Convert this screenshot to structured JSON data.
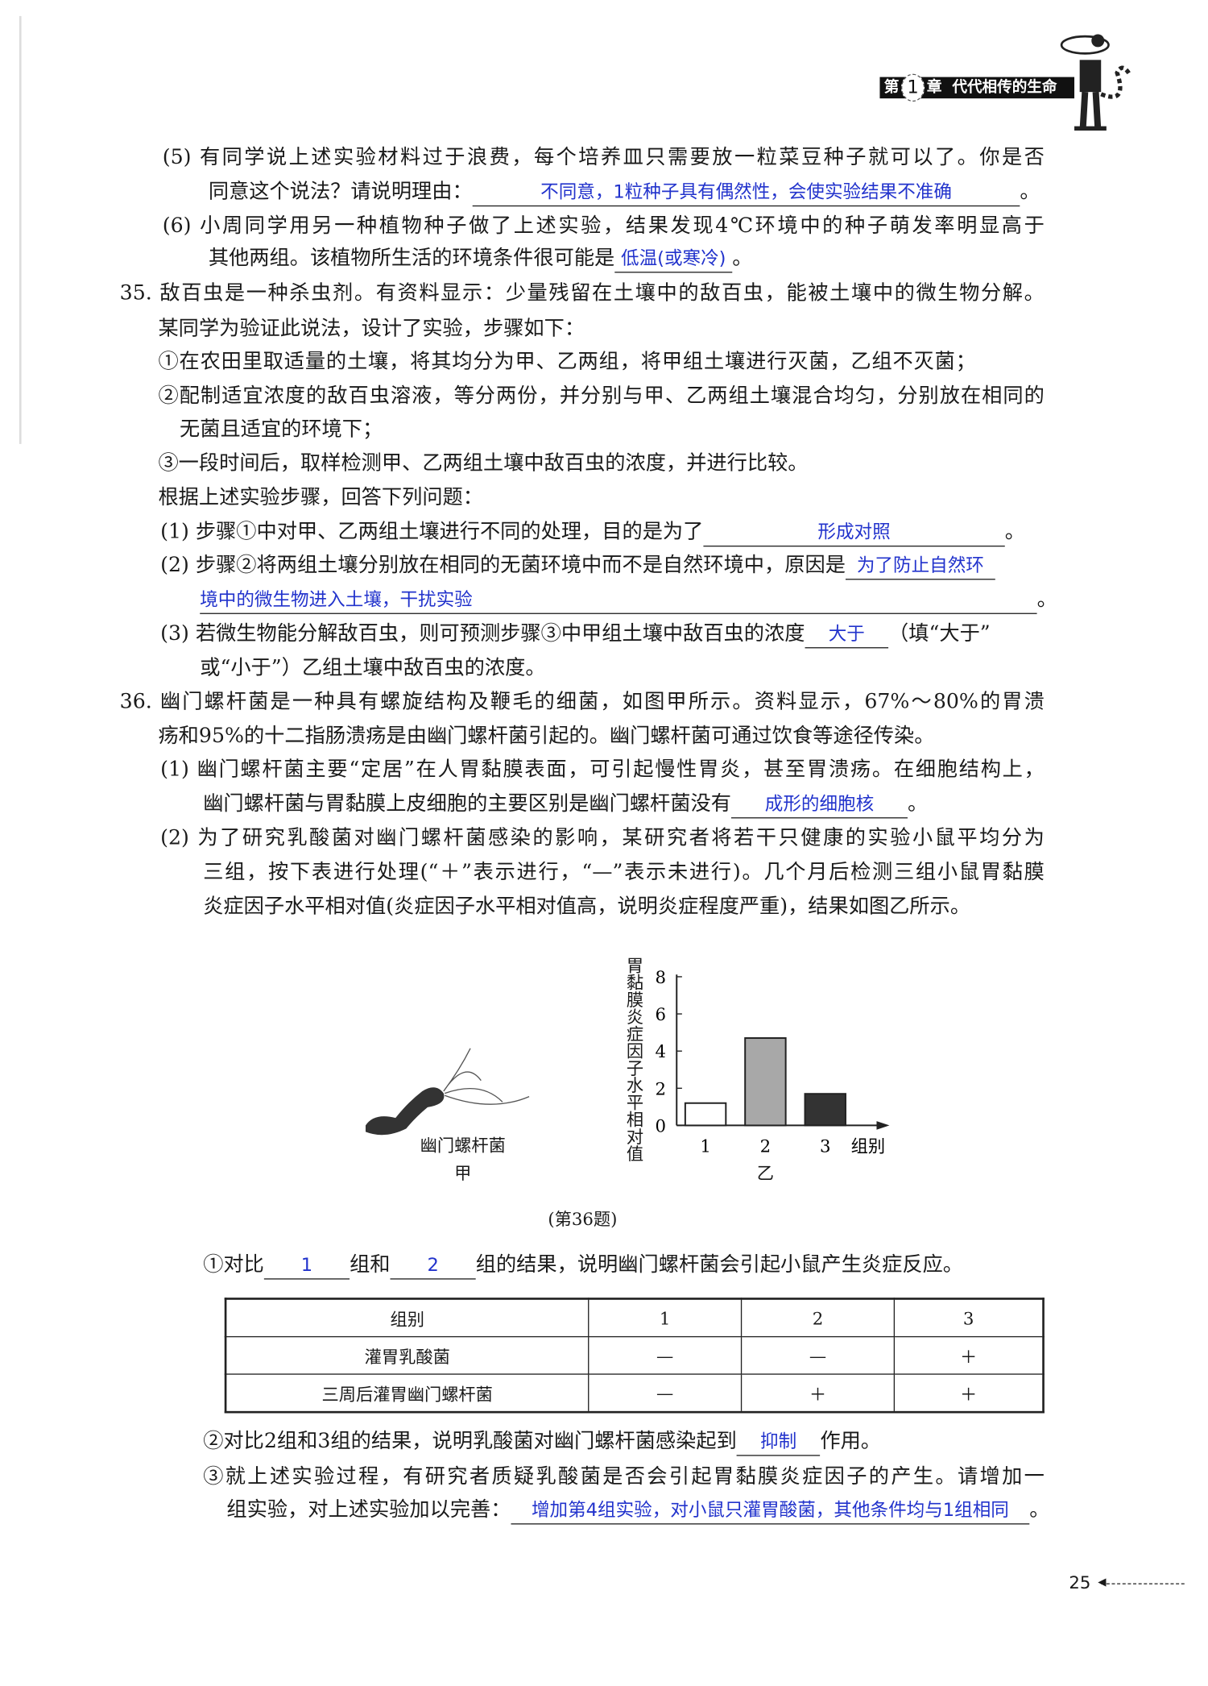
{
  "header": {
    "chapter_prefix": "第",
    "chapter_number": "1",
    "chapter_suffix": "章",
    "chapter_title": "代代相传的生命"
  },
  "q34": {
    "p5_line1": "(5) 有同学说上述实验材料过于浪费，每个培养皿只需要放一粒菜豆种子就可以了。你是否",
    "p5_line2": "同意这个说法？请说明理由：",
    "p5_answer": "不同意，1粒种子具有偶然性，会使实验结果不准确",
    "p6_line1": "(6) 小周同学用另一种植物种子做了上述实验，结果发现4℃环境中的种子萌发率明显高于",
    "p6_line2": "其他两组。该植物所生活的环境条件很可能是",
    "p6_answer": "低温(或寒冷)"
  },
  "q35": {
    "stem1": "35. 敌百虫是一种杀虫剂。有资料显示：少量残留在土壤中的敌百虫，能被土壤中的微生物分解。",
    "stem2": "某同学为验证此说法，设计了实验，步骤如下：",
    "step1": "①在农田里取适量的土壤，将其均分为甲、乙两组，将甲组土壤进行灭菌，乙组不灭菌；",
    "step2a": "②配制适宜浓度的敌百虫溶液，等分两份，并分别与甲、乙两组土壤混合均匀，分别放在相同的",
    "step2b": "无菌且适宜的环境下；",
    "step3": "③一段时间后，取样检测甲、乙两组土壤中敌百虫的浓度，并进行比较。",
    "prompt": "根据上述实验步骤，回答下列问题：",
    "p1": "(1) 步骤①中对甲、乙两组土壤进行不同的处理，目的是为了",
    "p1_answer": "形成对照",
    "p2": "(2) 步骤②将两组土壤分别放在相同的无菌环境中而不是自然环境中，原因是",
    "p2_answer_a": "为了防止自然环",
    "p2_answer_b": "境中的微生物进入土壤，干扰实验",
    "p3a": "(3) 若微生物能分解敌百虫，则可预测步骤③中甲组土壤中敌百虫的浓度",
    "p3_answer": "大于",
    "p3b": "（填“大于”",
    "p3c": "或“小于”）乙组土壤中敌百虫的浓度。"
  },
  "q36": {
    "stem1": "36. 幽门螺杆菌是一种具有螺旋结构及鞭毛的细菌，如图甲所示。资料显示，67%～80%的胃溃",
    "stem2": "疡和95%的十二指肠溃疡是由幽门螺杆菌引起的。幽门螺杆菌可通过饮食等途径传染。",
    "p1a": "(1) 幽门螺杆菌主要“定居”在人胃黏膜表面，可引起慢性胃炎，甚至胃溃疡。在细胞结构上，",
    "p1b": "幽门螺杆菌与胃黏膜上皮细胞的主要区别是幽门螺杆菌没有",
    "p1_answer": "成形的细胞核",
    "p2a": "(2) 为了研究乳酸菌对幽门螺杆菌感染的影响，某研究者将若干只健康的实验小鼠平均分为",
    "p2b": "三组，按下表进行处理(“＋”表示进行，“—”表示未进行)。几个月后检测三组小鼠胃黏膜",
    "p2c": "炎症因子水平相对值(炎症因子水平相对值高，说明炎症程度严重)，结果如图乙所示。",
    "fig_a_label": "幽门螺杆菌",
    "fig_a_tag": "甲",
    "fig_b_tag": "乙",
    "caption": "(第36题)",
    "s1a": "①对比",
    "s1_answer1": "1",
    "s1b": "组和",
    "s1_answer2": "2",
    "s1c": "组的结果，说明幽门螺杆菌会引起小鼠产生炎症反应。",
    "table": {
      "header": [
        "组别",
        "1",
        "2",
        "3"
      ],
      "rows": [
        [
          "灌胃乳酸菌",
          "—",
          "—",
          "＋"
        ],
        [
          "三周后灌胃幽门螺杆菌",
          "—",
          "＋",
          "＋"
        ]
      ]
    },
    "s2a": "②对比2组和3组的结果，说明乳酸菌对幽门螺杆菌感染起到",
    "s2_answer": "抑制",
    "s2b": "作用。",
    "s3a": "③就上述实验过程，有研究者质疑乳酸菌是否会引起胃黏膜炎症因子的产生。请增加一",
    "s3b": "组实验，对上述实验加以完善：",
    "s3_answer": "增加第4组实验，对小鼠只灌胃酸菌，其他条件均与1组相同"
  },
  "chart_data": {
    "type": "bar",
    "categories": [
      "1",
      "2",
      "3"
    ],
    "values": [
      1.2,
      4.7,
      1.7
    ],
    "bar_colors": [
      "#ffffff",
      "#a8a8a8",
      "#333333"
    ],
    "xlabel": "组别",
    "ylabel": "胃黏膜炎症因子水平相对值",
    "yticks": [
      "0",
      "2",
      "4",
      "6",
      "8"
    ],
    "ylim": [
      0,
      8
    ],
    "grid": false
  },
  "page_number": "25",
  "colors": {
    "answer": "#2233cc",
    "text": "#1a1a1a"
  }
}
